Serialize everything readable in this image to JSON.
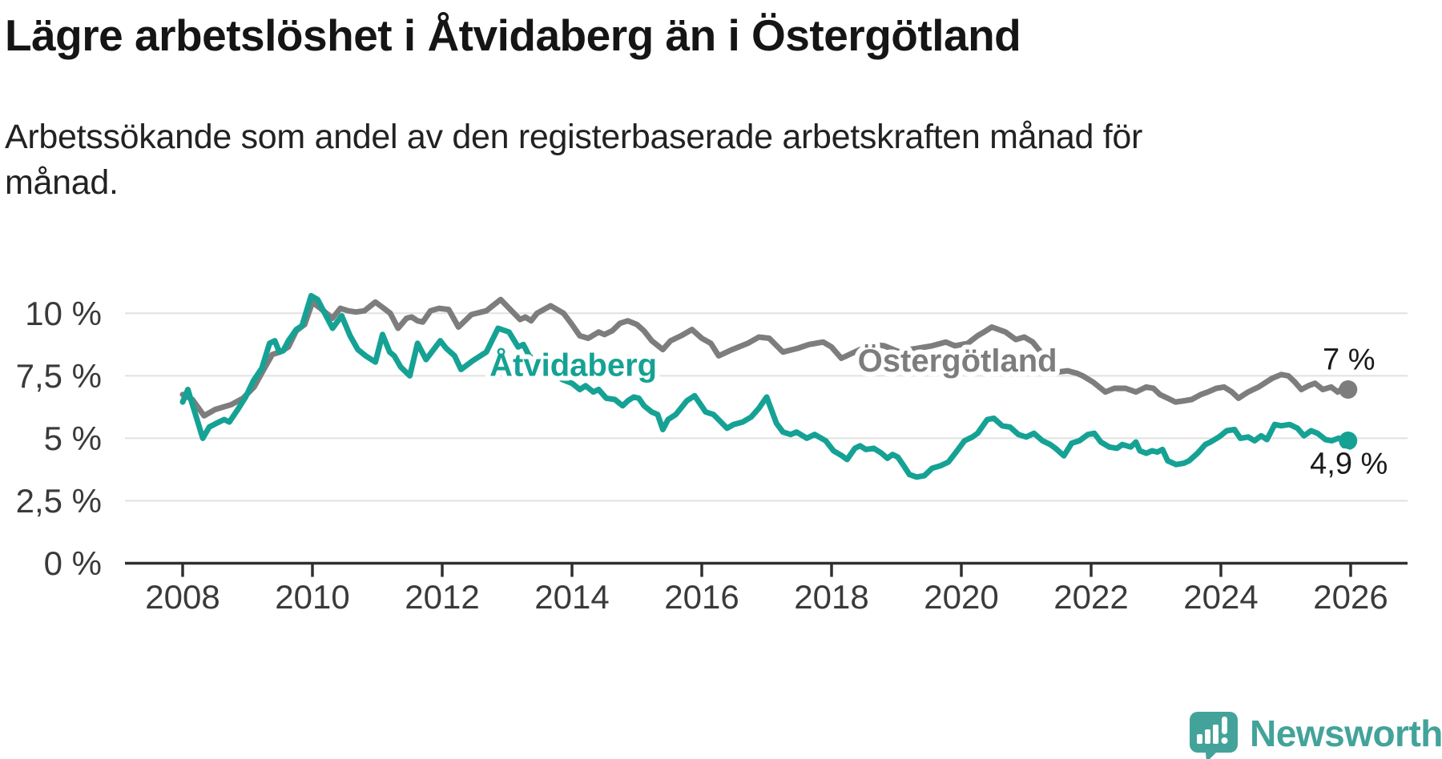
{
  "header": {
    "title": "Lägre arbetslöshet i Åtvidaberg än i Östergötland",
    "subtitle_lines": [
      "Arbetssökande som andel av den registerbaserade arbetskraften månad för",
      "månad."
    ]
  },
  "colors": {
    "atvidaberg": "#15a294",
    "ostergotland": "#7d7d7d",
    "axis": "#2f2f2f",
    "grid": "#e1e1e1",
    "tick_text": "#3a3a3a",
    "end_label_text": "#1a1a1a",
    "logo": "#43a39a",
    "background": "#ffffff"
  },
  "chart_data": {
    "type": "line",
    "title": "Lägre arbetslöshet i Åtvidaberg än i Östergötland",
    "subtitle": "Arbetssökande som andel av den registerbaserade arbetskraften månad för månad.",
    "unit": "%",
    "grid": true,
    "legend_position": "inline-labels",
    "x_axis": {
      "ticks": [
        2008,
        2010,
        2012,
        2014,
        2016,
        2018,
        2020,
        2022,
        2024,
        2026
      ],
      "range": [
        2007.1,
        2026.9
      ]
    },
    "y_axis": {
      "range": [
        0,
        11.2
      ],
      "ticks": [
        {
          "value": 0,
          "label": "0 %"
        },
        {
          "value": 2.5,
          "label": "2,5 %"
        },
        {
          "value": 5,
          "label": "5 %"
        },
        {
          "value": 7.5,
          "label": "7,5 %"
        },
        {
          "value": 10,
          "label": "10 %"
        }
      ]
    },
    "series": [
      {
        "name": "Östergötland",
        "color": "#7d7d7d",
        "end_label": "7 %",
        "end_value": 7.0,
        "end_label_side": "above",
        "label_pos": {
          "year": 2019.94,
          "value": 8.12
        },
        "points": [
          [
            2008.0,
            6.75
          ],
          [
            2008.15,
            6.55
          ],
          [
            2008.33,
            5.9
          ],
          [
            2008.5,
            6.15
          ],
          [
            2008.75,
            6.35
          ],
          [
            2008.93,
            6.6
          ],
          [
            2009.1,
            7.05
          ],
          [
            2009.26,
            7.8
          ],
          [
            2009.38,
            8.35
          ],
          [
            2009.5,
            8.45
          ],
          [
            2009.63,
            8.65
          ],
          [
            2009.75,
            9.3
          ],
          [
            2009.88,
            9.55
          ],
          [
            2010.0,
            10.45
          ],
          [
            2010.17,
            10.1
          ],
          [
            2010.31,
            9.8
          ],
          [
            2010.43,
            10.2
          ],
          [
            2010.55,
            10.1
          ],
          [
            2010.67,
            10.05
          ],
          [
            2010.8,
            10.1
          ],
          [
            2010.97,
            10.45
          ],
          [
            2011.1,
            10.2
          ],
          [
            2011.2,
            10.0
          ],
          [
            2011.32,
            9.4
          ],
          [
            2011.45,
            9.8
          ],
          [
            2011.53,
            9.85
          ],
          [
            2011.62,
            9.7
          ],
          [
            2011.7,
            9.65
          ],
          [
            2011.82,
            10.1
          ],
          [
            2011.95,
            10.2
          ],
          [
            2012.1,
            10.15
          ],
          [
            2012.25,
            9.45
          ],
          [
            2012.45,
            9.95
          ],
          [
            2012.68,
            10.1
          ],
          [
            2012.9,
            10.55
          ],
          [
            2013.05,
            10.15
          ],
          [
            2013.2,
            9.75
          ],
          [
            2013.28,
            9.85
          ],
          [
            2013.37,
            9.7
          ],
          [
            2013.46,
            10.0
          ],
          [
            2013.67,
            10.3
          ],
          [
            2013.87,
            10.0
          ],
          [
            2014.0,
            9.55
          ],
          [
            2014.12,
            9.1
          ],
          [
            2014.25,
            9.0
          ],
          [
            2014.41,
            9.25
          ],
          [
            2014.5,
            9.15
          ],
          [
            2014.62,
            9.3
          ],
          [
            2014.74,
            9.6
          ],
          [
            2014.86,
            9.7
          ],
          [
            2015.0,
            9.55
          ],
          [
            2015.11,
            9.3
          ],
          [
            2015.23,
            8.9
          ],
          [
            2015.4,
            8.55
          ],
          [
            2015.52,
            8.9
          ],
          [
            2015.68,
            9.1
          ],
          [
            2015.85,
            9.35
          ],
          [
            2016.0,
            9.0
          ],
          [
            2016.14,
            8.8
          ],
          [
            2016.26,
            8.3
          ],
          [
            2016.47,
            8.55
          ],
          [
            2016.71,
            8.8
          ],
          [
            2016.88,
            9.05
          ],
          [
            2017.04,
            9.0
          ],
          [
            2017.25,
            8.45
          ],
          [
            2017.48,
            8.6
          ],
          [
            2017.65,
            8.75
          ],
          [
            2017.87,
            8.85
          ],
          [
            2018.0,
            8.65
          ],
          [
            2018.15,
            8.2
          ],
          [
            2018.4,
            8.5
          ],
          [
            2018.62,
            8.75
          ],
          [
            2018.81,
            8.7
          ],
          [
            2019.05,
            8.45
          ],
          [
            2019.19,
            8.55
          ],
          [
            2019.33,
            8.6
          ],
          [
            2019.55,
            8.7
          ],
          [
            2019.76,
            8.85
          ],
          [
            2019.9,
            8.7
          ],
          [
            2020.1,
            8.8
          ],
          [
            2020.25,
            9.1
          ],
          [
            2020.35,
            9.25
          ],
          [
            2020.47,
            9.45
          ],
          [
            2020.68,
            9.25
          ],
          [
            2020.84,
            8.95
          ],
          [
            2020.97,
            9.05
          ],
          [
            2021.1,
            8.85
          ],
          [
            2021.3,
            8.2
          ],
          [
            2021.48,
            7.65
          ],
          [
            2021.64,
            7.7
          ],
          [
            2021.78,
            7.6
          ],
          [
            2021.87,
            7.5
          ],
          [
            2022.03,
            7.25
          ],
          [
            2022.22,
            6.85
          ],
          [
            2022.36,
            7.0
          ],
          [
            2022.53,
            7.0
          ],
          [
            2022.69,
            6.85
          ],
          [
            2022.85,
            7.05
          ],
          [
            2022.96,
            7.0
          ],
          [
            2023.06,
            6.75
          ],
          [
            2023.18,
            6.6
          ],
          [
            2023.3,
            6.45
          ],
          [
            2023.43,
            6.5
          ],
          [
            2023.55,
            6.55
          ],
          [
            2023.69,
            6.75
          ],
          [
            2023.8,
            6.85
          ],
          [
            2023.93,
            7.0
          ],
          [
            2024.05,
            7.05
          ],
          [
            2024.17,
            6.85
          ],
          [
            2024.27,
            6.6
          ],
          [
            2024.42,
            6.85
          ],
          [
            2024.58,
            7.05
          ],
          [
            2024.79,
            7.4
          ],
          [
            2024.93,
            7.55
          ],
          [
            2025.04,
            7.5
          ],
          [
            2025.14,
            7.25
          ],
          [
            2025.24,
            6.95
          ],
          [
            2025.35,
            7.1
          ],
          [
            2025.45,
            7.2
          ],
          [
            2025.57,
            6.95
          ],
          [
            2025.7,
            7.05
          ],
          [
            2025.8,
            6.85
          ],
          [
            2025.9,
            7.05
          ],
          [
            2025.96,
            6.95
          ]
        ]
      },
      {
        "name": "Åtvidaberg",
        "color": "#15a294",
        "end_label": "4,9 %",
        "end_value": 4.9,
        "end_label_side": "below",
        "label_pos": {
          "year": 2014.02,
          "value": 7.95
        },
        "points": [
          [
            2008.0,
            6.45
          ],
          [
            2008.08,
            6.95
          ],
          [
            2008.31,
            5.0
          ],
          [
            2008.41,
            5.45
          ],
          [
            2008.52,
            5.6
          ],
          [
            2008.64,
            5.75
          ],
          [
            2008.72,
            5.65
          ],
          [
            2008.85,
            6.15
          ],
          [
            2008.97,
            6.65
          ],
          [
            2009.09,
            7.3
          ],
          [
            2009.22,
            7.8
          ],
          [
            2009.34,
            8.8
          ],
          [
            2009.42,
            8.9
          ],
          [
            2009.49,
            8.45
          ],
          [
            2009.55,
            8.5
          ],
          [
            2009.63,
            8.9
          ],
          [
            2009.75,
            9.35
          ],
          [
            2009.84,
            9.5
          ],
          [
            2009.98,
            10.7
          ],
          [
            2010.08,
            10.55
          ],
          [
            2010.21,
            9.9
          ],
          [
            2010.31,
            9.4
          ],
          [
            2010.45,
            9.9
          ],
          [
            2010.58,
            9.1
          ],
          [
            2010.7,
            8.55
          ],
          [
            2010.82,
            8.3
          ],
          [
            2010.97,
            8.05
          ],
          [
            2011.08,
            9.15
          ],
          [
            2011.19,
            8.45
          ],
          [
            2011.26,
            8.3
          ],
          [
            2011.36,
            7.85
          ],
          [
            2011.5,
            7.5
          ],
          [
            2011.62,
            8.8
          ],
          [
            2011.75,
            8.15
          ],
          [
            2011.97,
            8.9
          ],
          [
            2012.06,
            8.6
          ],
          [
            2012.19,
            8.3
          ],
          [
            2012.29,
            7.75
          ],
          [
            2012.47,
            8.1
          ],
          [
            2012.68,
            8.45
          ],
          [
            2012.86,
            9.4
          ],
          [
            2013.03,
            9.25
          ],
          [
            2013.17,
            8.65
          ],
          [
            2013.25,
            8.75
          ],
          [
            2013.34,
            8.3
          ],
          [
            2013.5,
            7.95
          ],
          [
            2013.7,
            7.6
          ],
          [
            2013.85,
            7.35
          ],
          [
            2014.0,
            7.2
          ],
          [
            2014.12,
            6.95
          ],
          [
            2014.21,
            7.1
          ],
          [
            2014.33,
            6.85
          ],
          [
            2014.41,
            6.95
          ],
          [
            2014.53,
            6.6
          ],
          [
            2014.66,
            6.55
          ],
          [
            2014.78,
            6.3
          ],
          [
            2014.86,
            6.5
          ],
          [
            2014.95,
            6.65
          ],
          [
            2015.03,
            6.6
          ],
          [
            2015.11,
            6.3
          ],
          [
            2015.23,
            6.05
          ],
          [
            2015.32,
            5.95
          ],
          [
            2015.4,
            5.35
          ],
          [
            2015.48,
            5.75
          ],
          [
            2015.6,
            5.95
          ],
          [
            2015.77,
            6.5
          ],
          [
            2015.89,
            6.7
          ],
          [
            2016.06,
            6.05
          ],
          [
            2016.18,
            5.95
          ],
          [
            2016.39,
            5.4
          ],
          [
            2016.49,
            5.55
          ],
          [
            2016.63,
            5.65
          ],
          [
            2016.76,
            5.85
          ],
          [
            2016.88,
            6.2
          ],
          [
            2017.0,
            6.65
          ],
          [
            2017.15,
            5.6
          ],
          [
            2017.25,
            5.25
          ],
          [
            2017.37,
            5.15
          ],
          [
            2017.46,
            5.25
          ],
          [
            2017.62,
            5.0
          ],
          [
            2017.74,
            5.15
          ],
          [
            2017.91,
            4.9
          ],
          [
            2018.03,
            4.5
          ],
          [
            2018.16,
            4.3
          ],
          [
            2018.24,
            4.15
          ],
          [
            2018.36,
            4.6
          ],
          [
            2018.44,
            4.7
          ],
          [
            2018.53,
            4.55
          ],
          [
            2018.65,
            4.6
          ],
          [
            2018.77,
            4.4
          ],
          [
            2018.86,
            4.2
          ],
          [
            2018.94,
            4.35
          ],
          [
            2019.02,
            4.25
          ],
          [
            2019.1,
            3.95
          ],
          [
            2019.2,
            3.55
          ],
          [
            2019.31,
            3.45
          ],
          [
            2019.43,
            3.5
          ],
          [
            2019.55,
            3.8
          ],
          [
            2019.68,
            3.9
          ],
          [
            2019.8,
            4.05
          ],
          [
            2019.92,
            4.45
          ],
          [
            2020.05,
            4.9
          ],
          [
            2020.17,
            5.05
          ],
          [
            2020.25,
            5.2
          ],
          [
            2020.4,
            5.75
          ],
          [
            2020.5,
            5.8
          ],
          [
            2020.63,
            5.5
          ],
          [
            2020.75,
            5.45
          ],
          [
            2020.88,
            5.15
          ],
          [
            2021.0,
            5.05
          ],
          [
            2021.12,
            5.2
          ],
          [
            2021.25,
            4.9
          ],
          [
            2021.37,
            4.75
          ],
          [
            2021.45,
            4.6
          ],
          [
            2021.58,
            4.3
          ],
          [
            2021.7,
            4.8
          ],
          [
            2021.82,
            4.9
          ],
          [
            2021.95,
            5.15
          ],
          [
            2022.05,
            5.2
          ],
          [
            2022.15,
            4.85
          ],
          [
            2022.28,
            4.65
          ],
          [
            2022.4,
            4.6
          ],
          [
            2022.48,
            4.75
          ],
          [
            2022.61,
            4.65
          ],
          [
            2022.69,
            4.85
          ],
          [
            2022.75,
            4.5
          ],
          [
            2022.85,
            4.4
          ],
          [
            2022.94,
            4.5
          ],
          [
            2023.02,
            4.45
          ],
          [
            2023.1,
            4.55
          ],
          [
            2023.18,
            4.1
          ],
          [
            2023.31,
            3.95
          ],
          [
            2023.43,
            4.0
          ],
          [
            2023.51,
            4.1
          ],
          [
            2023.64,
            4.4
          ],
          [
            2023.76,
            4.75
          ],
          [
            2023.84,
            4.85
          ],
          [
            2023.97,
            5.05
          ],
          [
            2024.09,
            5.3
          ],
          [
            2024.21,
            5.35
          ],
          [
            2024.3,
            5.0
          ],
          [
            2024.42,
            5.05
          ],
          [
            2024.52,
            4.9
          ],
          [
            2024.62,
            5.1
          ],
          [
            2024.71,
            4.95
          ],
          [
            2024.83,
            5.55
          ],
          [
            2024.93,
            5.5
          ],
          [
            2025.06,
            5.55
          ],
          [
            2025.18,
            5.4
          ],
          [
            2025.28,
            5.1
          ],
          [
            2025.39,
            5.3
          ],
          [
            2025.49,
            5.2
          ],
          [
            2025.61,
            4.95
          ],
          [
            2025.71,
            4.9
          ],
          [
            2025.81,
            5.0
          ],
          [
            2025.96,
            4.9
          ]
        ]
      }
    ]
  },
  "logo": {
    "text": "Newsworthy"
  }
}
